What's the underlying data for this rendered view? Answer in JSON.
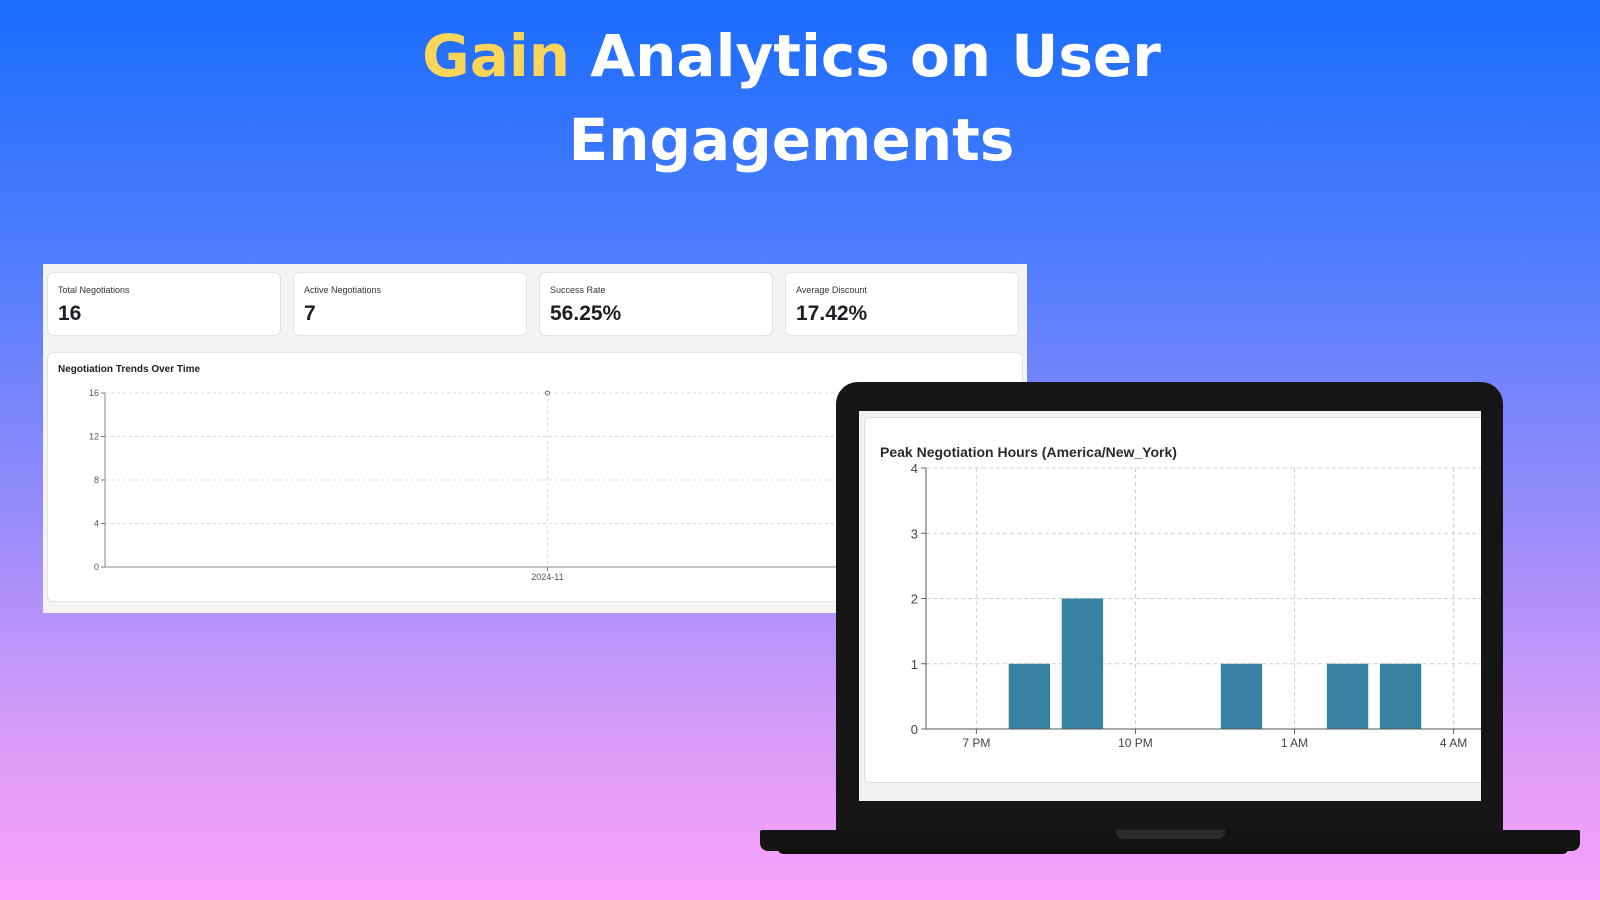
{
  "headline": {
    "accent": "Gain",
    "rest_line1": " Analytics on User",
    "line2": "Engagements"
  },
  "colors": {
    "accent_yellow": "#f9d65a",
    "bar_teal": "#3781a1",
    "text_white": "#ffffff"
  },
  "stats": [
    {
      "label": "Total Negotiations",
      "value": "16"
    },
    {
      "label": "Active Negotiations",
      "value": "7"
    },
    {
      "label": "Success Rate",
      "value": "56.25%"
    },
    {
      "label": "Average Discount",
      "value": "17.42%"
    }
  ],
  "trend_chart": {
    "title": "Negotiation Trends Over Time",
    "chart_data": {
      "type": "line",
      "x": [
        "2024-11"
      ],
      "series": [
        {
          "values": [
            16
          ]
        }
      ],
      "yticks": [
        0,
        4,
        8,
        12,
        16
      ],
      "ylim": [
        0,
        16
      ],
      "grid": true
    }
  },
  "peak_chart": {
    "title": "Peak Negotiation Hours (America/New_York)",
    "chart_data": {
      "type": "bar",
      "categories": [
        "8 PM",
        "9 PM",
        "12 AM",
        "2 AM",
        "3 AM"
      ],
      "x_hours": [
        20,
        21,
        24,
        26,
        27
      ],
      "values": [
        1,
        2,
        1,
        1,
        1
      ],
      "xticks": [
        "7 PM",
        "10 PM",
        "1 AM",
        "4 AM"
      ],
      "xtick_hours": [
        19,
        22,
        25,
        28
      ],
      "yticks": [
        0,
        1,
        2,
        3,
        4
      ],
      "ylim": [
        0,
        4
      ],
      "grid": true
    }
  }
}
